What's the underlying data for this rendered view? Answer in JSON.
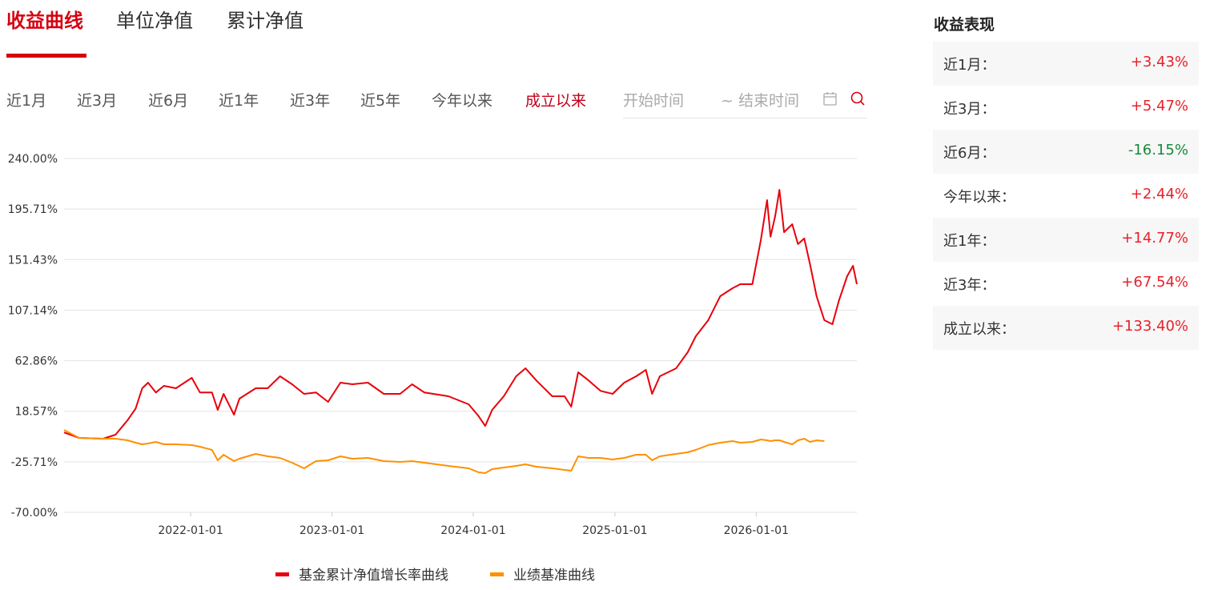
{
  "tabs": [
    "收益曲线",
    "单位净值",
    "累计净值"
  ],
  "active_tab": 0,
  "periods": [
    "近1月",
    "近3月",
    "近6月",
    "近1年",
    "近3年",
    "近5年",
    "今年以来",
    "成立以来"
  ],
  "active_period": 7,
  "date_range": {
    "start": "开始时间",
    "end": "~ 结束时间"
  },
  "chart_data": {
    "type": "line",
    "x": [
      "2021-02-08",
      "2021-03-19",
      "2021-05-20",
      "2021-06-21",
      "2021-07-22",
      "2021-08-12",
      "2021-08-29",
      "2021-09-13",
      "2021-10-03",
      "2021-10-24",
      "2021-11-24",
      "2022-01-04",
      "2022-01-25",
      "2022-02-25",
      "2022-03-12",
      "2022-03-27",
      "2022-04-23",
      "2022-05-07",
      "2022-06-18",
      "2022-07-19",
      "2022-08-20",
      "2022-09-20",
      "2022-10-21",
      "2022-11-21",
      "2022-12-22",
      "2023-01-23",
      "2023-02-23",
      "2023-04-04",
      "2023-05-15",
      "2023-06-26",
      "2023-07-27",
      "2023-08-28",
      "2023-10-29",
      "2023-12-20",
      "2024-01-15",
      "2024-02-01",
      "2024-02-19",
      "2024-03-20",
      "2024-04-21",
      "2024-05-15",
      "2024-06-12",
      "2024-07-23",
      "2024-08-24",
      "2024-09-10",
      "2024-09-28",
      "2024-10-25",
      "2024-11-25",
      "2024-12-26",
      "2025-01-25",
      "2025-02-25",
      "2025-03-22",
      "2025-04-07",
      "2025-04-27",
      "2025-06-08",
      "2025-07-08",
      "2025-07-29",
      "2025-08-30",
      "2025-09-30",
      "2025-11-01",
      "2025-11-21",
      "2025-12-22",
      "2026-01-13",
      "2026-01-29",
      "2026-02-07",
      "2026-02-19",
      "2026-03-02",
      "2026-03-14",
      "2026-04-04",
      "2026-04-19",
      "2026-05-05",
      "2026-05-20",
      "2026-06-06",
      "2026-06-26",
      "2026-07-17",
      "2026-08-03",
      "2026-08-24",
      "2026-09-08",
      "2026-09-18"
    ],
    "series": [
      {
        "name": "基金累计净值增长率曲线",
        "color": "#e8000b",
        "values": [
          0,
          -4.8,
          -5.5,
          -2,
          10.7,
          21,
          38.7,
          43.6,
          35,
          40.8,
          38.7,
          47.8,
          35,
          35,
          19.8,
          33.8,
          15.6,
          29.6,
          38.7,
          38.7,
          49.2,
          42.2,
          33.8,
          35,
          26.8,
          43.6,
          42.2,
          43.6,
          33.8,
          33.8,
          42.2,
          35,
          31.7,
          24.7,
          14.2,
          5.7,
          19.8,
          31.7,
          49.2,
          56.2,
          45.6,
          31.7,
          31.7,
          22.6,
          52.7,
          45.6,
          36.4,
          33.8,
          43.6,
          49.2,
          54.8,
          33.8,
          49.2,
          56.2,
          70.3,
          84.3,
          98.3,
          119.4,
          126.4,
          129.9,
          129.9,
          168.5,
          203.5,
          171.5,
          189.5,
          212.6,
          175.5,
          182.4,
          165,
          169.9,
          147.4,
          119.4,
          98.3,
          94.8,
          115.9,
          136.9,
          146,
          129.9
        ]
      },
      {
        "name": "业绩基准曲线",
        "color": "#ff9000",
        "values": [
          2.2,
          -4.8,
          -5.5,
          -5.5,
          -6.9,
          -9,
          -10.4,
          -9.7,
          -8.3,
          -10.4,
          -10.4,
          -11.1,
          -12.5,
          -15.3,
          -24.4,
          -19.5,
          -25.1,
          -23,
          -18.8,
          -20.9,
          -22.3,
          -26.5,
          -31.4,
          -25.1,
          -24.4,
          -20.9,
          -23,
          -22.3,
          -25.1,
          -25.8,
          -25.1,
          -26.5,
          -29.3,
          -31.4,
          -34.9,
          -35.6,
          -32.1,
          -30.7,
          -29.3,
          -27.9,
          -30,
          -31.4,
          -32.8,
          -33.5,
          -20.9,
          -22.3,
          -22.3,
          -23.7,
          -22.3,
          -19.5,
          -19.5,
          -24.4,
          -20.9,
          -18.8,
          -17.4,
          -15.3,
          -11.1,
          -9,
          -7.6,
          -9,
          -8.3,
          -6.2,
          -6.9,
          -7.6,
          -6.9,
          -6.9,
          -8.3,
          -10.4,
          -6.9,
          -5.5,
          -8.3,
          -6.9,
          -7.6,
          null,
          null,
          null,
          null,
          null
        ]
      }
    ],
    "xlim": [
      "2021-02-08",
      "2026-09-18"
    ],
    "xticks": [
      "2022-01-01",
      "2023-01-01",
      "2024-01-01",
      "2025-01-01",
      "2026-01-01"
    ],
    "ylim": [
      -70,
      240
    ],
    "yticks": [
      {
        "value": 240,
        "label": "240.00%"
      },
      {
        "value": 195.71,
        "label": "195.71%"
      },
      {
        "value": 151.43,
        "label": "151.43%"
      },
      {
        "value": 107.14,
        "label": "107.14%"
      },
      {
        "value": 62.86,
        "label": "62.86%"
      },
      {
        "value": 18.57,
        "label": "18.57%"
      },
      {
        "value": -25.71,
        "label": "-25.71%"
      },
      {
        "value": -70,
        "label": "-70.00%"
      }
    ],
    "grid": true
  },
  "performance": {
    "title": "收益表现",
    "rows": [
      [
        "近1月：",
        "+3.43%"
      ],
      [
        "近3月：",
        "+5.47%"
      ],
      [
        "近6月：",
        "-16.15%"
      ],
      [
        "今年以来：",
        "+2.44%"
      ],
      [
        "近1年：",
        "+14.77%"
      ],
      [
        "近3年：",
        "+67.54%"
      ],
      [
        "成立以来：",
        "+133.40%"
      ]
    ]
  }
}
